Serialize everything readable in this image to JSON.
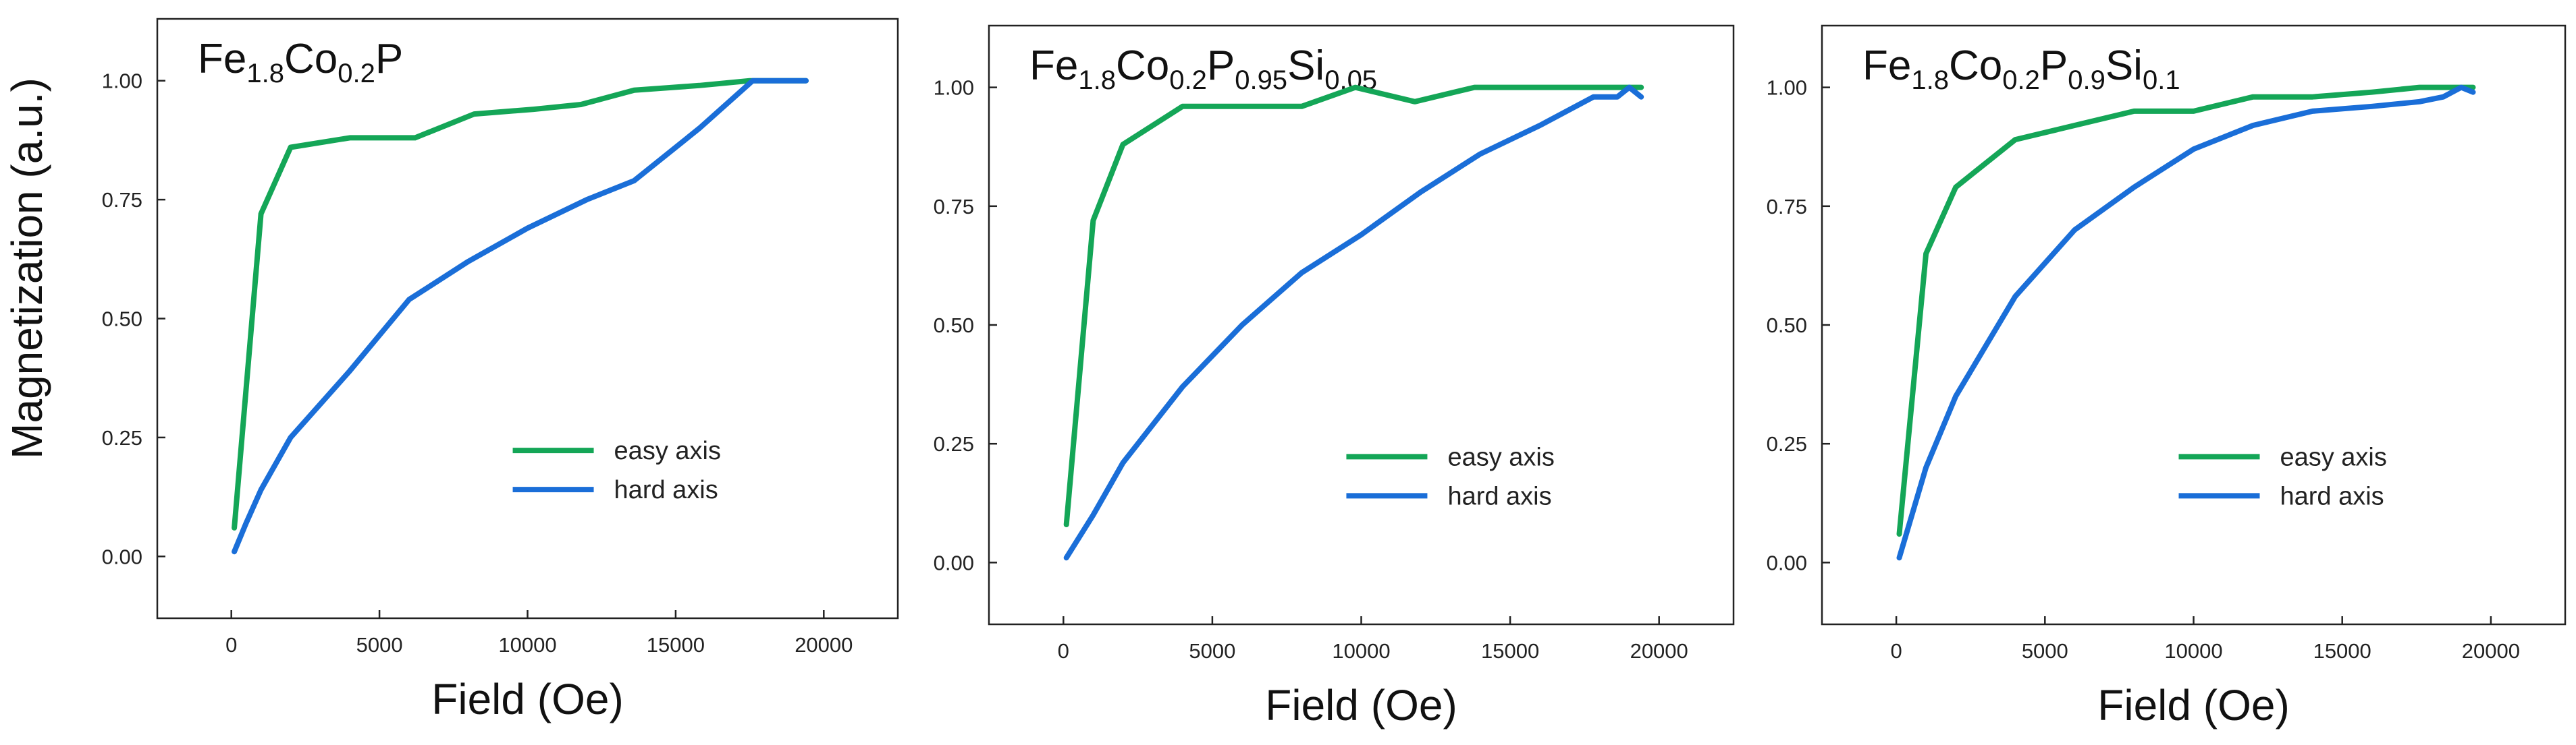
{
  "ylabel": "Magnetization (a.u.)",
  "colors": {
    "easy": "#14a657",
    "hard": "#1a6ed8"
  },
  "chart_data": [
    {
      "type": "line",
      "title": "Fe1.8Co0.2P",
      "title_parts": [
        {
          "text": "Fe",
          "sub": false
        },
        {
          "text": "1.8",
          "sub": true
        },
        {
          "text": "Co",
          "sub": false
        },
        {
          "text": "0.2",
          "sub": true
        },
        {
          "text": "P",
          "sub": false
        }
      ],
      "xlabel": "Field (Oe)",
      "ylabel": "Magnetization (a.u.)",
      "xlim": [
        -2500,
        22500
      ],
      "ylim": [
        -0.13,
        1.13
      ],
      "xticks": [
        0,
        5000,
        10000,
        15000,
        20000
      ],
      "yticks": [
        0.0,
        0.25,
        0.5,
        0.75,
        1.0
      ],
      "xtick_labels": [
        "0",
        "5000",
        "10000",
        "15000",
        "20000"
      ],
      "ytick_labels": [
        "0.00",
        "0.25",
        "0.50",
        "0.75",
        "1.00"
      ],
      "legend": "lower-right",
      "grid": false,
      "series": [
        {
          "name": "easy axis",
          "color": "#14a657",
          "x": [
            100,
            1000,
            2000,
            4000,
            6200,
            8200,
            10200,
            11800,
            13600,
            15800,
            17500,
            19000,
            19400
          ],
          "y": [
            0.06,
            0.72,
            0.86,
            0.88,
            0.88,
            0.93,
            0.94,
            0.95,
            0.98,
            0.99,
            1.0,
            1.0,
            1.0
          ]
        },
        {
          "name": "hard axis",
          "color": "#1a6ed8",
          "x": [
            100,
            500,
            1000,
            2000,
            4000,
            6000,
            8000,
            10000,
            12000,
            13600,
            15800,
            17600,
            18500,
            19000,
            19400
          ],
          "y": [
            0.01,
            0.07,
            0.14,
            0.25,
            0.39,
            0.54,
            0.62,
            0.69,
            0.75,
            0.79,
            0.9,
            1.0,
            1.0,
            1.0,
            1.0
          ]
        }
      ]
    },
    {
      "type": "line",
      "title": "Fe1.8Co0.2P0.95Si0.05",
      "title_parts": [
        {
          "text": "Fe",
          "sub": false
        },
        {
          "text": "1.8",
          "sub": true
        },
        {
          "text": "Co",
          "sub": false
        },
        {
          "text": "0.2",
          "sub": true
        },
        {
          "text": "P",
          "sub": false
        },
        {
          "text": "0.95",
          "sub": true
        },
        {
          "text": "Si",
          "sub": false
        },
        {
          "text": "0.05",
          "sub": true
        }
      ],
      "xlabel": "Field (Oe)",
      "ylabel": "",
      "xlim": [
        -2500,
        22500
      ],
      "ylim": [
        -0.13,
        1.13
      ],
      "xticks": [
        0,
        5000,
        10000,
        15000,
        20000
      ],
      "yticks": [
        0.0,
        0.25,
        0.5,
        0.75,
        1.0
      ],
      "xtick_labels": [
        "0",
        "5000",
        "10000",
        "15000",
        "20000"
      ],
      "ytick_labels": [
        "0.00",
        "0.25",
        "0.50",
        "0.75",
        "1.00"
      ],
      "legend": "lower-right",
      "grid": false,
      "series": [
        {
          "name": "easy axis",
          "color": "#14a657",
          "x": [
            100,
            1000,
            2000,
            4000,
            6000,
            8000,
            9800,
            11800,
            13800,
            15800,
            17800,
            19000,
            19400
          ],
          "y": [
            0.08,
            0.72,
            0.88,
            0.96,
            0.96,
            0.96,
            1.0,
            0.97,
            1.0,
            1.0,
            1.0,
            1.0,
            1.0
          ]
        },
        {
          "name": "hard axis",
          "color": "#1a6ed8",
          "x": [
            100,
            1000,
            2000,
            4000,
            6000,
            8000,
            10000,
            12000,
            14000,
            16000,
            17800,
            18600,
            19000,
            19400
          ],
          "y": [
            0.01,
            0.1,
            0.21,
            0.37,
            0.5,
            0.61,
            0.69,
            0.78,
            0.86,
            0.92,
            0.98,
            0.98,
            1.0,
            0.98
          ]
        }
      ]
    },
    {
      "type": "line",
      "title": "Fe1.8Co0.2P0.9Si0.1",
      "title_parts": [
        {
          "text": "Fe",
          "sub": false
        },
        {
          "text": "1.8",
          "sub": true
        },
        {
          "text": "Co",
          "sub": false
        },
        {
          "text": "0.2",
          "sub": true
        },
        {
          "text": "P",
          "sub": false
        },
        {
          "text": "0.9",
          "sub": true
        },
        {
          "text": "Si",
          "sub": false
        },
        {
          "text": "0.1",
          "sub": true
        }
      ],
      "xlabel": "Field (Oe)",
      "ylabel": "",
      "xlim": [
        -2500,
        22500
      ],
      "ylim": [
        -0.13,
        1.13
      ],
      "xticks": [
        0,
        5000,
        10000,
        15000,
        20000
      ],
      "yticks": [
        0.0,
        0.25,
        0.5,
        0.75,
        1.0
      ],
      "xtick_labels": [
        "0",
        "5000",
        "10000",
        "15000",
        "20000"
      ],
      "ytick_labels": [
        "0.00",
        "0.25",
        "0.50",
        "0.75",
        "1.00"
      ],
      "legend": "lower-right",
      "grid": false,
      "series": [
        {
          "name": "easy axis",
          "color": "#14a657",
          "x": [
            100,
            1000,
            2000,
            4000,
            6000,
            8000,
            10000,
            12000,
            14000,
            16000,
            17600,
            19000,
            19400
          ],
          "y": [
            0.06,
            0.65,
            0.79,
            0.89,
            0.92,
            0.95,
            0.95,
            0.98,
            0.98,
            0.99,
            1.0,
            1.0,
            1.0
          ]
        },
        {
          "name": "hard axis",
          "color": "#1a6ed8",
          "x": [
            100,
            1000,
            2000,
            4000,
            6000,
            8000,
            10000,
            12000,
            14000,
            16000,
            17600,
            18400,
            19000,
            19400
          ],
          "y": [
            0.01,
            0.2,
            0.35,
            0.56,
            0.7,
            0.79,
            0.87,
            0.92,
            0.95,
            0.96,
            0.97,
            0.98,
            1.0,
            0.99
          ]
        }
      ]
    }
  ]
}
